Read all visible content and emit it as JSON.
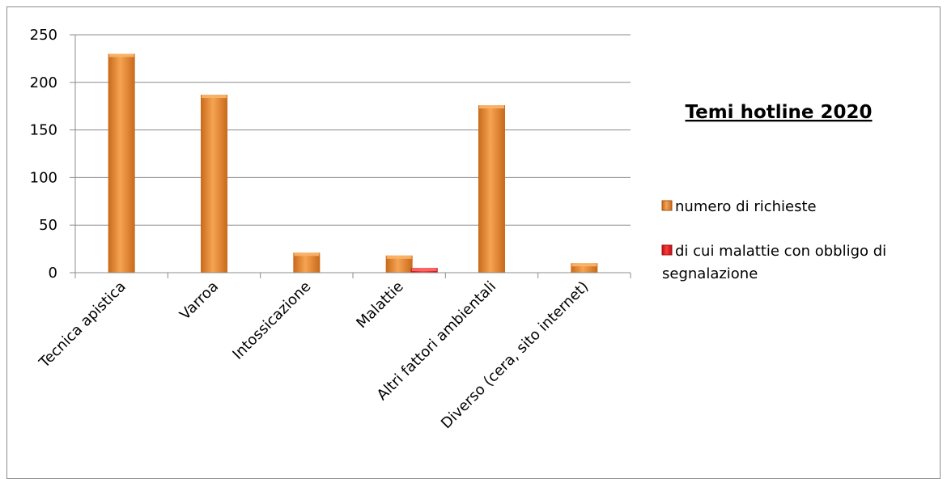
{
  "chart_data": {
    "type": "bar",
    "title": "Temi hotline 2020",
    "categories": [
      "Tecnica apistica",
      "Varroa",
      "Intossicazione",
      "Malattie",
      "Altri fattori ambientali",
      "Diverso (cera, sito internet)"
    ],
    "series": [
      {
        "name": "numero di richieste",
        "color": "#e8923a",
        "values": [
          230,
          187,
          21,
          18,
          176,
          10
        ]
      },
      {
        "name": "di cui malattie con obbligo di segnalazione",
        "color": "#e8202a",
        "values": [
          null,
          null,
          null,
          5,
          null,
          null
        ]
      }
    ],
    "yticks": [
      0,
      50,
      100,
      150,
      200,
      250
    ],
    "ylim": [
      0,
      250
    ],
    "grid": true,
    "legend_position": "right",
    "legend_lines": [
      [
        "numero di richieste"
      ],
      [
        "di cui malattie con obbligo di",
        "segnalazione"
      ]
    ]
  }
}
